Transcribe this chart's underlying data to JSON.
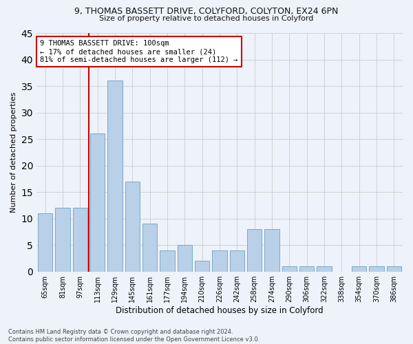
{
  "title": "9, THOMAS BASSETT DRIVE, COLYFORD, COLYTON, EX24 6PN",
  "subtitle": "Size of property relative to detached houses in Colyford",
  "xlabel": "Distribution of detached houses by size in Colyford",
  "ylabel": "Number of detached properties",
  "categories": [
    "65sqm",
    "81sqm",
    "97sqm",
    "113sqm",
    "129sqm",
    "145sqm",
    "161sqm",
    "177sqm",
    "194sqm",
    "210sqm",
    "226sqm",
    "242sqm",
    "258sqm",
    "274sqm",
    "290sqm",
    "306sqm",
    "322sqm",
    "338sqm",
    "354sqm",
    "370sqm",
    "386sqm"
  ],
  "values": [
    11,
    12,
    12,
    26,
    36,
    17,
    9,
    4,
    5,
    2,
    4,
    4,
    8,
    8,
    1,
    1,
    1,
    0,
    1,
    1,
    1
  ],
  "bar_color": "#b8d0e8",
  "bar_edge_color": "#7aaac8",
  "highlight_line_color": "#cc0000",
  "subject_label": "9 THOMAS BASSETT DRIVE: 100sqm",
  "annotation_line1": "← 17% of detached houses are smaller (24)",
  "annotation_line2": "81% of semi-detached houses are larger (112) →",
  "annotation_box_color": "#ffffff",
  "annotation_box_edge": "#cc0000",
  "ylim": [
    0,
    45
  ],
  "yticks": [
    0,
    5,
    10,
    15,
    20,
    25,
    30,
    35,
    40,
    45
  ],
  "background_color": "#eef2fa",
  "footer_line1": "Contains HM Land Registry data © Crown copyright and database right 2024.",
  "footer_line2": "Contains public sector information licensed under the Open Government Licence v3.0."
}
